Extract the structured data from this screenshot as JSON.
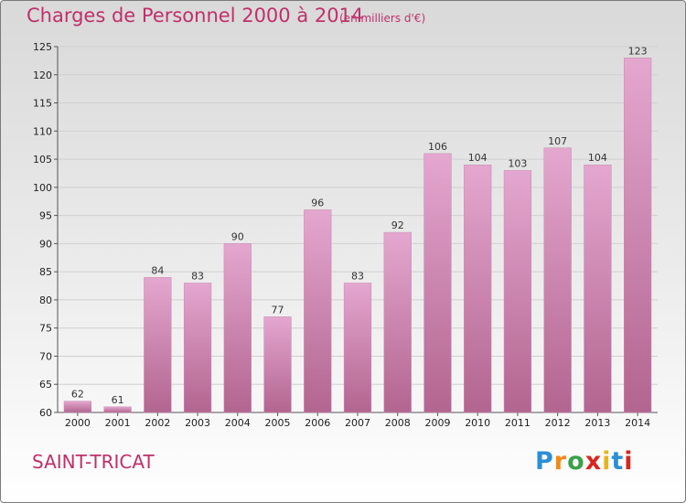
{
  "header": {
    "title": "Charges de Personnel 2000 à 2014",
    "subtitle": "(en milliers d'€)"
  },
  "footer": {
    "town": "SAINT-TRICAT",
    "logo_letters": [
      "P",
      "r",
      "o",
      "x",
      "i",
      "t",
      "i"
    ]
  },
  "colors": {
    "accent": "#c0306a",
    "bar_top": "#e4a7cf",
    "bar_bottom": "#b2658f"
  },
  "chart_data": {
    "type": "bar",
    "title": "Charges de Personnel 2000 à 2014",
    "subtitle": "(en milliers d'€)",
    "categories": [
      "2000",
      "2001",
      "2002",
      "2003",
      "2004",
      "2005",
      "2006",
      "2007",
      "2008",
      "2009",
      "2010",
      "2011",
      "2012",
      "2013",
      "2014"
    ],
    "values": [
      62,
      61,
      84,
      83,
      90,
      77,
      96,
      83,
      92,
      106,
      104,
      103,
      107,
      104,
      123
    ],
    "ylim": [
      60,
      125
    ],
    "yticks": [
      60,
      65,
      70,
      75,
      80,
      85,
      90,
      95,
      100,
      105,
      110,
      115,
      120,
      125
    ],
    "grid": true,
    "legend": "none"
  }
}
